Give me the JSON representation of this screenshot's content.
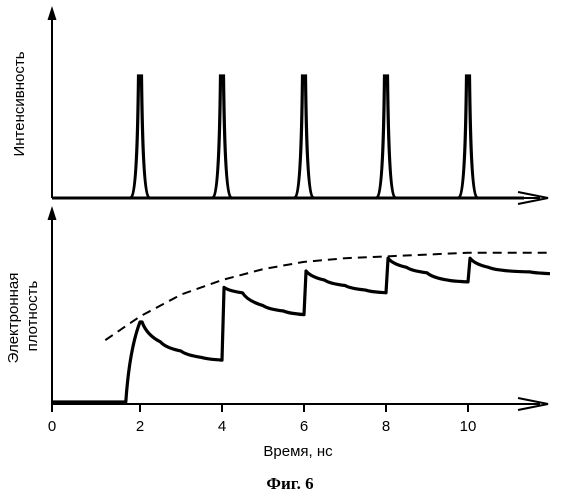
{
  "chart_data": [
    {
      "type": "line",
      "ylabel": "Интенсивность",
      "xlim": [
        0,
        12
      ],
      "x_ticks": [],
      "series": [
        {
          "pulse_times_ns": [
            2,
            4,
            6,
            8,
            10
          ]
        }
      ]
    },
    {
      "type": "line",
      "xlabel": "Время, нс",
      "ylabel_lines": [
        "Электронная",
        "плотность"
      ],
      "xlim": [
        0,
        12
      ],
      "x_ticks": [
        "0",
        "2",
        "4",
        "6",
        "8",
        "10"
      ],
      "series": [
        {
          "style": "solid",
          "x": [
            0,
            1.8,
            2,
            2.05,
            2.5,
            3,
            3.5,
            4,
            4.05,
            4.5,
            5,
            5.5,
            6,
            6.05,
            6.5,
            7,
            7.5,
            8,
            8.05,
            8.5,
            9,
            9.5,
            10,
            10.05,
            10.5,
            11,
            11.5,
            12
          ],
          "y": [
            0,
            0,
            0.44,
            0.44,
            0.33,
            0.28,
            0.245,
            0.23,
            0.63,
            0.6,
            0.53,
            0.5,
            0.48,
            0.72,
            0.67,
            0.64,
            0.615,
            0.6,
            0.79,
            0.74,
            0.71,
            0.67,
            0.66,
            0.79,
            0.74,
            0.72,
            0.715,
            0.705
          ]
        },
        {
          "style": "dashed",
          "x": [
            1.3,
            2,
            3,
            4,
            5,
            6,
            7,
            8,
            9,
            10,
            11,
            12
          ],
          "y": [
            0.34,
            0.47,
            0.59,
            0.67,
            0.73,
            0.77,
            0.79,
            0.8,
            0.81,
            0.82,
            0.82,
            0.82
          ]
        }
      ]
    }
  ],
  "caption": "Фиг. 6"
}
